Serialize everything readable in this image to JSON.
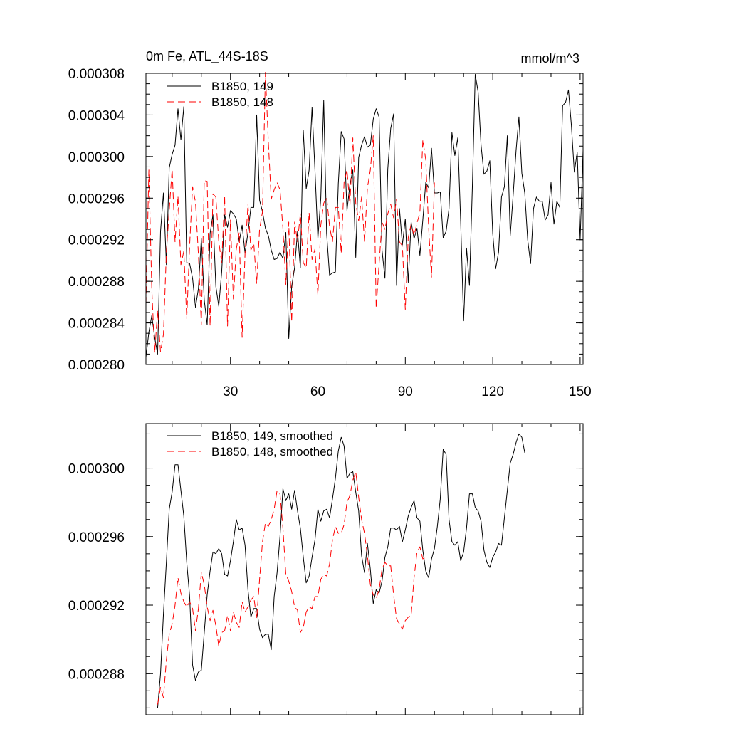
{
  "chart_data": [
    {
      "type": "line",
      "title": "0m Fe, ATL_44S-18S",
      "units": "mmol/m^3",
      "xlabel": "",
      "ylabel": "",
      "xlim": [
        1,
        151
      ],
      "ylim": [
        0.00028,
        0.000308
      ],
      "xticks": [
        30,
        60,
        90,
        120,
        150
      ],
      "yticks": [
        "0.000280",
        "0.000284",
        "0.000288",
        "0.000292",
        "0.000296",
        "0.000300",
        "0.000304",
        "0.000308"
      ],
      "legend_position": "top-left",
      "series": [
        {
          "name": "B1850, 149",
          "color": "#000000",
          "dash": "solid",
          "x_start": 1,
          "values": [
            0.0002807,
            0.0002831,
            0.0002847,
            0.0002826,
            0.000281,
            0.0002928,
            0.0002965,
            0.0002896,
            0.0002989,
            0.0003002,
            0.0003011,
            0.0003046,
            0.0003016,
            0.0003048,
            0.0002898,
            0.0002897,
            0.0002883,
            0.0002855,
            0.0002873,
            0.0002921,
            0.0002862,
            0.0002838,
            0.0002926,
            0.0002944,
            0.0002875,
            0.0002856,
            0.0002889,
            0.0002944,
            0.0002932,
            0.0002948,
            0.0002945,
            0.000294,
            0.0002918,
            0.0002934,
            0.0002907,
            0.0002927,
            0.0002951,
            0.0002951,
            0.000304,
            0.0002958,
            0.0002947,
            0.0002931,
            0.0002924,
            0.000291,
            0.0002901,
            0.0002902,
            0.0002908,
            0.0002902,
            0.0002927,
            0.0002825,
            0.0002875,
            0.0002893,
            0.0002928,
            0.0002893,
            0.0003025,
            0.0002969,
            0.0002987,
            0.0003047,
            0.0002987,
            0.0002921,
            0.000296,
            0.0003054,
            0.0002926,
            0.0002886,
            0.0002888,
            0.0002889,
            0.0002974,
            0.0003024,
            0.0003017,
            0.0002948,
            0.0002973,
            0.0002987,
            0.0002903,
            0.0002999,
            0.0003011,
            0.0003019,
            0.0003009,
            0.0003011,
            0.0003036,
            0.0003046,
            0.0003038,
            0.000291,
            0.0002883,
            0.0002988,
            0.0003027,
            0.0003041,
            0.0002876,
            0.000295,
            0.0002915,
            0.000294,
            0.0002879,
            0.0002937,
            0.0002921,
            0.0002931,
            0.0002905,
            0.0002939,
            0.0002975,
            0.000297,
            0.0003008,
            0.0002965,
            0.0002965,
            0.0002966,
            0.0002922,
            0.0002928,
            0.000295,
            0.0003023,
            0.0003001,
            0.0003018,
            0.0002937,
            0.0002842,
            0.0002912,
            0.0002876,
            0.0002971,
            0.0003079,
            0.0003062,
            0.0003011,
            0.0002983,
            0.0002986,
            0.0002996,
            0.0002926,
            0.0002892,
            0.0002908,
            0.0002961,
            0.0002971,
            0.000302,
            0.0002924,
            0.0002963,
            0.0003006,
            0.0003038,
            0.0002984,
            0.0002965,
            0.000292,
            0.0002897,
            0.000295,
            0.0002961,
            0.0002957,
            0.0002957,
            0.0002939,
            0.0002944,
            0.0002975,
            0.0002935,
            0.0002957,
            0.0002951,
            0.0003049,
            0.0003052,
            0.0003064,
            0.000303,
            0.0002985,
            0.0003004,
            0.000292,
            0.0003006
          ]
        },
        {
          "name": "B1850, 148",
          "color": "#ff0000",
          "dash": "dashed",
          "x_start": 1,
          "values": [
            0.0002858,
            0.0002987,
            0.0002873,
            0.0002811,
            0.0002852,
            0.0002812,
            0.0002829,
            0.0002908,
            0.0002948,
            0.0002988,
            0.0002918,
            0.0002962,
            0.0002896,
            0.0002909,
            0.0002844,
            0.0002915,
            0.0002971,
            0.0002956,
            0.0002906,
            0.0002838,
            0.0002977,
            0.0002976,
            0.0002837,
            0.0002964,
            0.0002961,
            0.0002918,
            0.0002898,
            0.0002962,
            0.0002837,
            0.0002939,
            0.0002863,
            0.0002911,
            0.0002927,
            0.0002826,
            0.0002907,
            0.0002954,
            0.000291,
            0.0002916,
            0.0002878,
            0.000293,
            0.0002947,
            0.0003081,
            0.0003014,
            0.0002959,
            0.0002968,
            0.0002975,
            0.0002968,
            0.0002931,
            0.0002877,
            0.0002937,
            0.0002841,
            0.0002937,
            0.0002918,
            0.0002945,
            0.0002898,
            0.0002893,
            0.0002946,
            0.0002901,
            0.0002911,
            0.0002867,
            0.0002934,
            0.0002955,
            0.0002961,
            0.0002933,
            0.0002918,
            0.0002951,
            0.0002951,
            0.0002907,
            0.0002975,
            0.0002987,
            0.0002953,
            0.0003018,
            0.0002955,
            0.0002938,
            0.0002961,
            0.0002918,
            0.000297,
            0.0002987,
            0.000302,
            0.0002854,
            0.0002897,
            0.0002937,
            0.000293,
            0.0002945,
            0.0002954,
            0.0002941,
            0.0002959,
            0.0002918,
            0.0002914,
            0.0002853,
            0.0002922,
            0.0002935,
            0.0002924,
            0.0002936,
            0.0002946,
            0.0003016,
            0.0002997,
            0.0002931,
            0.0002884,
            0.0002975
          ]
        }
      ]
    },
    {
      "type": "line",
      "title": "",
      "xlabel": "",
      "ylabel": "",
      "xlim": [
        1,
        151
      ],
      "ylim": [
        0.0002856,
        0.0003026
      ],
      "xticks": [
        30,
        60,
        90,
        120,
        150
      ],
      "yticks": [
        "0.000288",
        "0.000292",
        "0.000296",
        "0.000300"
      ],
      "legend_position": "top-left",
      "series": [
        {
          "name": "B1850, 149, smoothed",
          "color": "#000000",
          "dash": "solid",
          "x_start": 5,
          "values": [
            0.000286,
            0.000288,
            0.0002915,
            0.0002945,
            0.0002976,
            0.0002986,
            0.0003002,
            0.0003002,
            0.0002987,
            0.0002972,
            0.0002945,
            0.0002925,
            0.0002885,
            0.0002876,
            0.0002881,
            0.0002882,
            0.0002904,
            0.0002926,
            0.000294,
            0.0002951,
            0.000295,
            0.0002953,
            0.000295,
            0.0002938,
            0.0002937,
            0.0002946,
            0.0002957,
            0.000297,
            0.0002964,
            0.0002965,
            0.0002955,
            0.0002929,
            0.0002913,
            0.0002918,
            0.0002918,
            0.0002906,
            0.0002901,
            0.0002903,
            0.0002903,
            0.0002894,
            0.0002925,
            0.0002939,
            0.000296,
            0.0002988,
            0.0002981,
            0.0002985,
            0.0002976,
            0.0002987,
            0.0002975,
            0.0002965,
            0.0002948,
            0.0002933,
            0.0002937,
            0.0002948,
            0.0002958,
            0.0002976,
            0.0002969,
            0.0002975,
            0.0002976,
            0.0002971,
            0.0002982,
            0.0002994,
            0.000301,
            0.0003018,
            0.0003013,
            0.0002994,
            0.0002997,
            0.0002998,
            0.0002986,
            0.0002975,
            0.0002949,
            0.0002939,
            0.0002956,
            0.0002941,
            0.0002921,
            0.0002929,
            0.0002927,
            0.0002934,
            0.0002948,
            0.0002954,
            0.0002965,
            0.0002965,
            0.0002964,
            0.0002966,
            0.0002957,
            0.0002964,
            0.0002972,
            0.0002977,
            0.0002981,
            0.0002971,
            0.0002969,
            0.0002952,
            0.000294,
            0.0002936,
            0.0002947,
            0.0002953,
            0.0002966,
            0.0002982,
            0.0003011,
            0.0003008,
            0.000297,
            0.0002957,
            0.0002955,
            0.0002957,
            0.0002946,
            0.0002951,
            0.0002965,
            0.0002985,
            0.0002985,
            0.0002977,
            0.0002975,
            0.0002969,
            0.0002952,
            0.0002945,
            0.0002942,
            0.0002948,
            0.0002951,
            0.0002956,
            0.0002955,
            0.0002971,
            0.0002987,
            0.0003003,
            0.0003008,
            0.0003015,
            0.000302,
            0.0003018,
            0.0003009
          ]
        },
        {
          "name": "B1850, 148, smoothed",
          "color": "#ff0000",
          "dash": "dashed",
          "x_start": 5,
          "values": [
            0.0002862,
            0.0002872,
            0.0002866,
            0.0002888,
            0.0002903,
            0.0002909,
            0.000292,
            0.0002936,
            0.0002927,
            0.0002922,
            0.0002919,
            0.0002922,
            0.0002918,
            0.0002905,
            0.0002918,
            0.0002939,
            0.0002932,
            0.0002919,
            0.0002911,
            0.0002917,
            0.0002908,
            0.0002896,
            0.0002904,
            0.0002905,
            0.0002914,
            0.0002905,
            0.0002916,
            0.000291,
            0.0002907,
            0.0002922,
            0.0002916,
            0.0002919,
            0.0002923,
            0.0002925,
            0.0002912,
            0.0002935,
            0.0002957,
            0.0002968,
            0.0002966,
            0.000297,
            0.0002976,
            0.0002987,
            0.0002985,
            0.0002965,
            0.0002938,
            0.0002934,
            0.0002928,
            0.0002919,
            0.0002917,
            0.0002904,
            0.0002907,
            0.0002916,
            0.0002919,
            0.0002918,
            0.0002925,
            0.0002925,
            0.0002935,
            0.0002938,
            0.0002937,
            0.0002944,
            0.0002958,
            0.0002966,
            0.0002962,
            0.0002962,
            0.0002967,
            0.000298,
            0.0002984,
            0.0002993,
            0.0002998,
            0.0002983,
            0.000297,
            0.0002962,
            0.0002949,
            0.0002932,
            0.0002926,
            0.0002924,
            0.0002929,
            0.0002941,
            0.0002945,
            0.0002943,
            0.0002943,
            0.0002926,
            0.0002912,
            0.0002909,
            0.0002906,
            0.0002911,
            0.0002913,
            0.0002914,
            0.0002936,
            0.0002951,
            0.0002954,
            0.0002947,
            0.0002948
          ]
        }
      ]
    }
  ]
}
